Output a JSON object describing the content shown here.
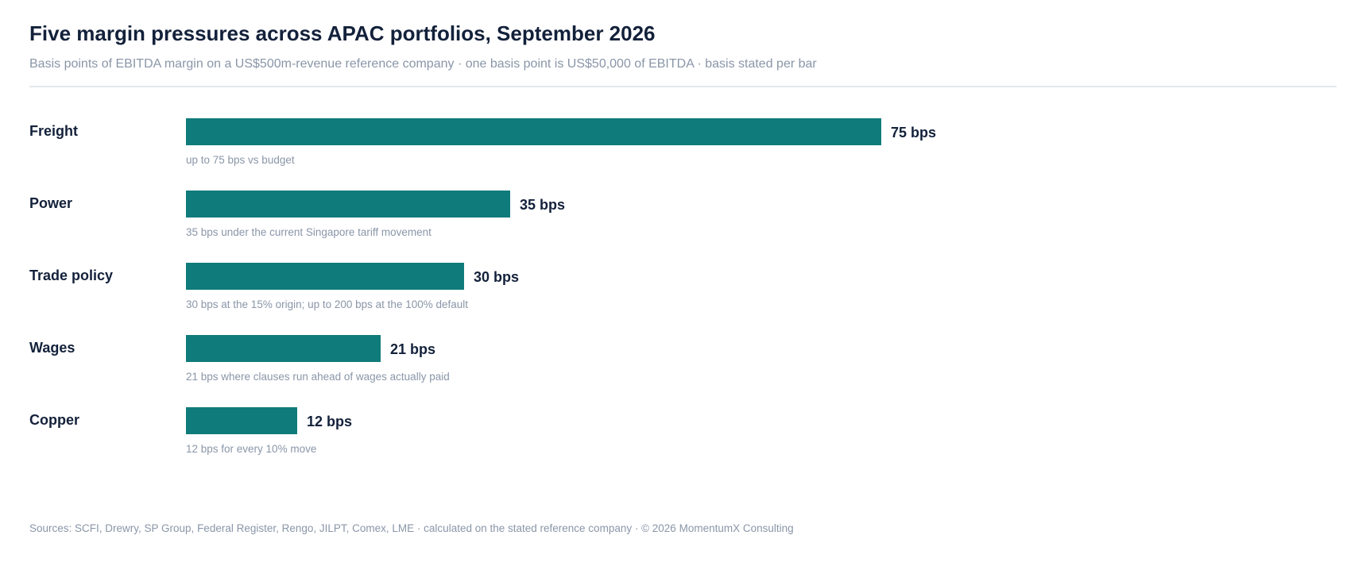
{
  "header": {
    "title": "Five margin pressures across APAC portfolios, September 2026",
    "subtitle": "Basis points of EBITDA margin on a US$500m-revenue reference company · one basis point is US$50,000 of EBITDA · basis stated per bar"
  },
  "chart_data": {
    "type": "bar",
    "orientation": "horizontal",
    "title": "Five margin pressures across APAC portfolios, September 2026",
    "subtitle": "Basis points of EBITDA margin on a US$500m-revenue reference company · one basis point is US$50,000 of EBITDA · basis stated per bar",
    "xlim": [
      0,
      75
    ],
    "grid": false,
    "bar_color": "#0f7b7a",
    "bars": [
      {
        "category": "Freight",
        "value": 75,
        "value_label": "75 bps",
        "note": "up to 75 bps vs budget"
      },
      {
        "category": "Power",
        "value": 35,
        "value_label": "35 bps",
        "note": "35 bps under the current Singapore tariff movement"
      },
      {
        "category": "Trade policy",
        "value": 30,
        "value_label": "30 bps",
        "note": "30 bps at the 15% origin; up to 200 bps at the 100% default"
      },
      {
        "category": "Wages",
        "value": 21,
        "value_label": "21 bps",
        "note": "21 bps where clauses run ahead of wages actually paid"
      },
      {
        "category": "Copper",
        "value": 12,
        "value_label": "12 bps",
        "note": "12 bps for every 10% move"
      }
    ]
  },
  "footer": {
    "source": "Sources: SCFI, Drewry, SP Group, Federal Register, Rengo, JILPT, Comex, LME · calculated on the stated reference company · © 2026 MomentumX Consulting"
  }
}
